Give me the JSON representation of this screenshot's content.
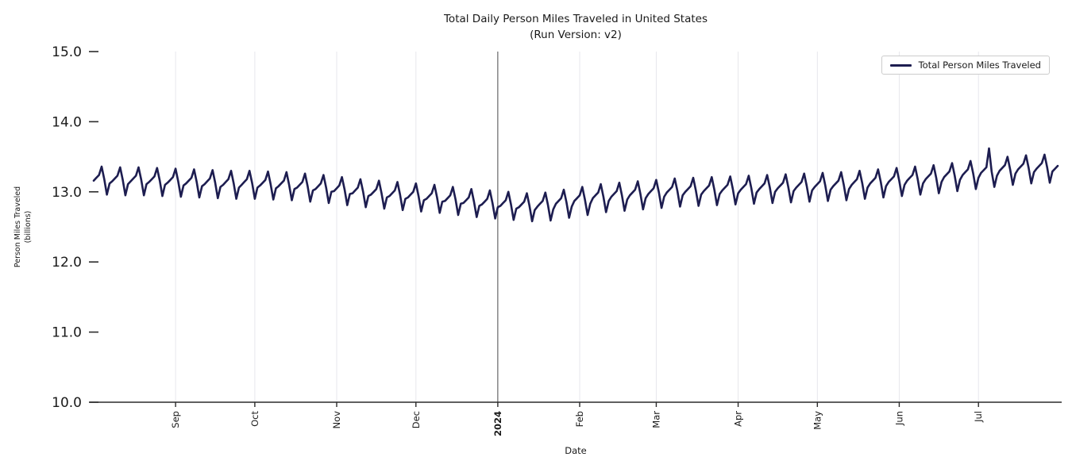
{
  "title": {
    "line1": "Total Daily Person Miles Traveled in United States",
    "line2": "(Run Version: v2)"
  },
  "legend": {
    "label": "Total Person Miles Traveled"
  },
  "axes": {
    "x_label": "Date",
    "y_label_line1": "Person Miles Traveled",
    "y_label_line2": "(billions)",
    "y_ticks": [
      {
        "value": 15.0,
        "label": "15.0"
      },
      {
        "value": 14.0,
        "label": "14.0"
      },
      {
        "value": 13.0,
        "label": "13.0"
      },
      {
        "value": 12.0,
        "label": "12.0"
      },
      {
        "value": 11.0,
        "label": "11.0"
      },
      {
        "value": 10.0,
        "label": "10.0"
      }
    ],
    "x_ticks": [
      {
        "label": "Sep",
        "day": 31,
        "bold": false
      },
      {
        "label": "Oct",
        "day": 61,
        "bold": false
      },
      {
        "label": "Nov",
        "day": 92,
        "bold": false
      },
      {
        "label": "Dec",
        "day": 122,
        "bold": false
      },
      {
        "label": "2024",
        "day": 153,
        "bold": true
      },
      {
        "label": "Feb",
        "day": 184,
        "bold": false
      },
      {
        "label": "Mar",
        "day": 213,
        "bold": false
      },
      {
        "label": "Apr",
        "day": 244,
        "bold": false
      },
      {
        "label": "May",
        "day": 274,
        "bold": false
      },
      {
        "label": "Jun",
        "day": 305,
        "bold": false
      },
      {
        "label": "Jul",
        "day": 335,
        "bold": false
      }
    ]
  },
  "colors": {
    "line": "#1d1d50",
    "grid": "#e7e7ec",
    "year_line": "#4d4d4d",
    "axis": "#2b2b2b",
    "text": "#1a1a1a"
  },
  "chart_data": {
    "type": "line",
    "title": "Total Daily Person Miles Traveled in United States (Run Version: v2)",
    "xlabel": "Date",
    "ylabel": "Person Miles Traveled (billions)",
    "ylim": [
      10.0,
      15.0
    ],
    "x_start_date": "2023-08-01",
    "x_frequency": "daily",
    "grid": "vertical-only",
    "legend_position": "upper right",
    "annotations": [
      {
        "type": "vline",
        "at_day": 153,
        "label": "2024"
      }
    ],
    "series": [
      {
        "name": "Total Person Miles Traveled",
        "values": [
          13.16,
          13.2,
          13.24,
          13.36,
          13.18,
          12.96,
          13.12,
          13.15,
          13.19,
          13.23,
          13.35,
          13.17,
          12.95,
          13.11,
          13.15,
          13.19,
          13.23,
          13.35,
          13.17,
          12.95,
          13.11,
          13.14,
          13.18,
          13.22,
          13.34,
          13.16,
          12.94,
          13.1,
          13.13,
          13.17,
          13.21,
          13.33,
          13.15,
          12.93,
          13.09,
          13.12,
          13.16,
          13.2,
          13.32,
          13.14,
          12.92,
          13.08,
          13.11,
          13.15,
          13.19,
          13.31,
          13.13,
          12.91,
          13.07,
          13.1,
          13.14,
          13.18,
          13.3,
          13.12,
          12.9,
          13.06,
          13.1,
          13.14,
          13.18,
          13.3,
          13.12,
          12.9,
          13.06,
          13.09,
          13.13,
          13.17,
          13.29,
          13.11,
          12.89,
          13.05,
          13.08,
          13.12,
          13.16,
          13.28,
          13.1,
          12.88,
          13.04,
          13.06,
          13.1,
          13.14,
          13.26,
          13.08,
          12.86,
          13.02,
          13.04,
          13.08,
          13.12,
          13.24,
          13.06,
          12.84,
          13.0,
          13.01,
          13.05,
          13.09,
          13.21,
          13.03,
          12.81,
          12.97,
          12.98,
          13.02,
          13.06,
          13.18,
          13.0,
          12.78,
          12.94,
          12.96,
          13.0,
          13.04,
          13.16,
          12.98,
          12.76,
          12.92,
          12.94,
          12.98,
          13.02,
          13.14,
          12.96,
          12.74,
          12.9,
          12.92,
          12.96,
          13.0,
          13.12,
          12.94,
          12.72,
          12.88,
          12.9,
          12.94,
          12.98,
          13.1,
          12.92,
          12.7,
          12.86,
          12.87,
          12.91,
          12.95,
          13.07,
          12.89,
          12.67,
          12.83,
          12.84,
          12.88,
          12.92,
          13.04,
          12.86,
          12.64,
          12.8,
          12.82,
          12.86,
          12.9,
          13.02,
          12.84,
          12.62,
          12.78,
          12.8,
          12.84,
          12.88,
          13.0,
          12.82,
          12.6,
          12.76,
          12.78,
          12.82,
          12.86,
          12.98,
          12.8,
          12.58,
          12.74,
          12.79,
          12.83,
          12.87,
          12.99,
          12.81,
          12.59,
          12.75,
          12.83,
          12.87,
          12.91,
          13.03,
          12.85,
          12.63,
          12.79,
          12.87,
          12.91,
          12.95,
          13.07,
          12.89,
          12.67,
          12.83,
          12.91,
          12.95,
          12.99,
          13.11,
          12.93,
          12.71,
          12.87,
          12.93,
          12.97,
          13.01,
          13.13,
          12.95,
          12.73,
          12.89,
          12.95,
          12.99,
          13.03,
          13.15,
          12.97,
          12.75,
          12.91,
          12.97,
          13.01,
          13.05,
          13.17,
          12.99,
          12.77,
          12.93,
          12.99,
          13.03,
          13.07,
          13.19,
          13.01,
          12.79,
          12.95,
          13.0,
          13.04,
          13.08,
          13.2,
          13.02,
          12.8,
          12.96,
          13.01,
          13.05,
          13.09,
          13.21,
          13.03,
          12.81,
          12.97,
          13.02,
          13.06,
          13.1,
          13.22,
          13.04,
          12.82,
          12.98,
          13.03,
          13.07,
          13.11,
          13.23,
          13.05,
          12.83,
          12.99,
          13.04,
          13.08,
          13.12,
          13.24,
          13.06,
          12.84,
          13.0,
          13.05,
          13.09,
          13.13,
          13.25,
          13.07,
          12.85,
          13.01,
          13.06,
          13.1,
          13.14,
          13.26,
          13.08,
          12.86,
          13.02,
          13.07,
          13.11,
          13.15,
          13.27,
          13.09,
          12.87,
          13.03,
          13.08,
          13.12,
          13.16,
          13.28,
          13.1,
          12.88,
          13.04,
          13.1,
          13.14,
          13.18,
          13.3,
          13.12,
          12.9,
          13.06,
          13.12,
          13.16,
          13.2,
          13.32,
          13.14,
          12.92,
          13.08,
          13.14,
          13.18,
          13.22,
          13.34,
          13.16,
          12.94,
          13.1,
          13.16,
          13.2,
          13.24,
          13.36,
          13.18,
          12.96,
          13.12,
          13.18,
          13.22,
          13.26,
          13.38,
          13.2,
          12.98,
          13.14,
          13.21,
          13.25,
          13.29,
          13.41,
          13.23,
          13.01,
          13.17,
          13.24,
          13.28,
          13.32,
          13.44,
          13.26,
          13.04,
          13.2,
          13.27,
          13.31,
          13.35,
          13.62,
          13.29,
          13.07,
          13.23,
          13.3,
          13.34,
          13.38,
          13.5,
          13.32,
          13.1,
          13.26,
          13.32,
          13.36,
          13.4,
          13.52,
          13.34,
          13.12,
          13.28,
          13.33,
          13.37,
          13.41,
          13.53,
          13.35,
          13.13,
          13.29,
          13.33,
          13.37
        ]
      }
    ]
  }
}
